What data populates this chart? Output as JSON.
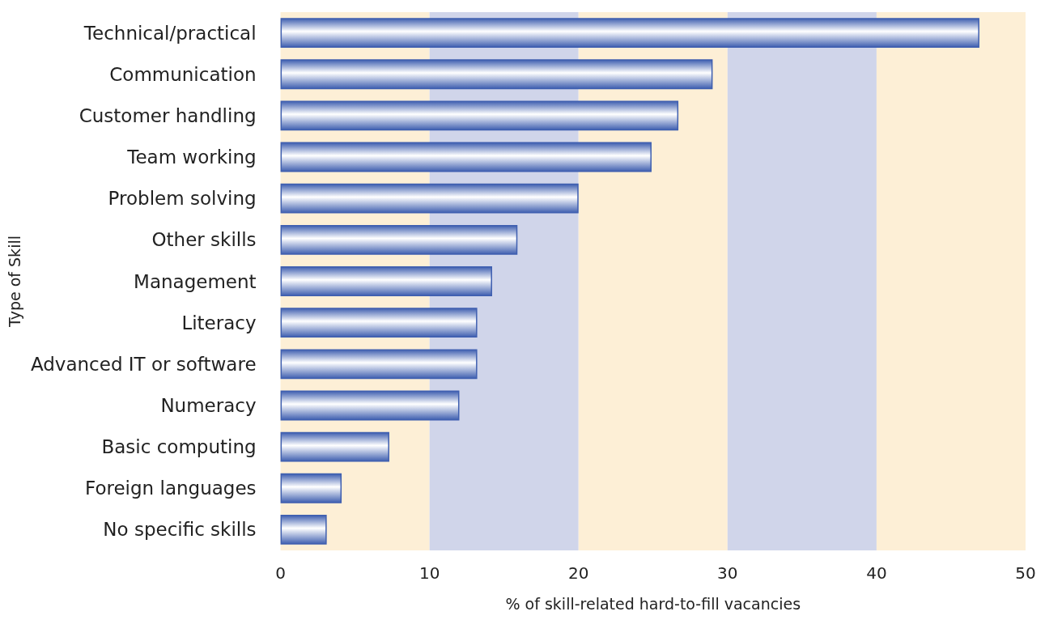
{
  "chart_data": {
    "type": "bar",
    "orientation": "horizontal",
    "xlabel": "% of skill-related hard-to-fill vacancies",
    "ylabel": "Type of Skill",
    "categories": [
      "Technical/practical",
      "Communication",
      "Customer handling",
      "Team working",
      "Problem solving",
      "Other skills",
      "Management",
      "Literacy",
      "Advanced IT or software",
      "Numeracy",
      "Basic computing",
      "Foreign languages",
      "No specific skills"
    ],
    "values": [
      46.9,
      29.0,
      26.7,
      24.9,
      20.0,
      15.9,
      14.2,
      13.2,
      13.2,
      12.0,
      7.3,
      4.1,
      3.1
    ],
    "color": "#3f5fb0",
    "xlim": [
      0,
      50
    ],
    "xticks": [
      0,
      10,
      20,
      30,
      40,
      50
    ],
    "bands": [
      {
        "axis": "x",
        "from": 0,
        "to": 10,
        "color": "#fdefd6"
      },
      {
        "axis": "x",
        "from": 10,
        "to": 20,
        "color": "#d0d5ea"
      },
      {
        "axis": "x",
        "from": 20,
        "to": 30,
        "color": "#fdefd6"
      },
      {
        "axis": "x",
        "from": 30,
        "to": 40,
        "color": "#d0d5ea"
      },
      {
        "axis": "x",
        "from": 40,
        "to": 50,
        "color": "#fdefd6"
      }
    ],
    "grid": false
  }
}
